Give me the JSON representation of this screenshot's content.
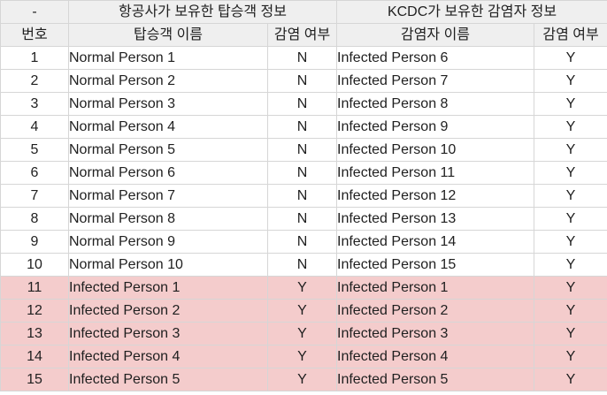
{
  "header": {
    "group_row": {
      "index_placeholder": "-",
      "airline_group": "항공사가 보유한 탑승객 정보",
      "kcdc_group": "KCDC가 보유한 감염자 정보"
    },
    "column_row": {
      "index": "번호",
      "passenger_name": "탑승객 이름",
      "passenger_infected": "감염 여부",
      "infected_name": "감염자 이름",
      "infected_status": "감염 여부"
    }
  },
  "rows": [
    {
      "no": "1",
      "passenger": "Normal Person 1",
      "p_status": "N",
      "infected": "Infected Person 6",
      "i_status": "Y",
      "highlight": false
    },
    {
      "no": "2",
      "passenger": "Normal Person 2",
      "p_status": "N",
      "infected": "Infected Person 7",
      "i_status": "Y",
      "highlight": false
    },
    {
      "no": "3",
      "passenger": "Normal Person 3",
      "p_status": "N",
      "infected": "Infected Person 8",
      "i_status": "Y",
      "highlight": false
    },
    {
      "no": "4",
      "passenger": "Normal Person 4",
      "p_status": "N",
      "infected": "Infected Person 9",
      "i_status": "Y",
      "highlight": false
    },
    {
      "no": "5",
      "passenger": "Normal Person 5",
      "p_status": "N",
      "infected": "Infected Person 10",
      "i_status": "Y",
      "highlight": false
    },
    {
      "no": "6",
      "passenger": "Normal Person 6",
      "p_status": "N",
      "infected": "Infected Person 11",
      "i_status": "Y",
      "highlight": false
    },
    {
      "no": "7",
      "passenger": "Normal Person 7",
      "p_status": "N",
      "infected": "Infected Person 12",
      "i_status": "Y",
      "highlight": false
    },
    {
      "no": "8",
      "passenger": "Normal Person 8",
      "p_status": "N",
      "infected": "Infected Person 13",
      "i_status": "Y",
      "highlight": false
    },
    {
      "no": "9",
      "passenger": "Normal Person 9",
      "p_status": "N",
      "infected": "Infected Person 14",
      "i_status": "Y",
      "highlight": false
    },
    {
      "no": "10",
      "passenger": "Normal Person 10",
      "p_status": "N",
      "infected": "Infected Person 15",
      "i_status": "Y",
      "highlight": false
    },
    {
      "no": "11",
      "passenger": "Infected Person 1",
      "p_status": "Y",
      "infected": "Infected Person 1",
      "i_status": "Y",
      "highlight": true
    },
    {
      "no": "12",
      "passenger": "Infected Person 2",
      "p_status": "Y",
      "infected": "Infected Person 2",
      "i_status": "Y",
      "highlight": true
    },
    {
      "no": "13",
      "passenger": "Infected Person 3",
      "p_status": "Y",
      "infected": "Infected Person 3",
      "i_status": "Y",
      "highlight": true
    },
    {
      "no": "14",
      "passenger": "Infected Person 4",
      "p_status": "Y",
      "infected": "Infected Person 4",
      "i_status": "Y",
      "highlight": true
    },
    {
      "no": "15",
      "passenger": "Infected Person 5",
      "p_status": "Y",
      "infected": "Infected Person 5",
      "i_status": "Y",
      "highlight": true
    }
  ],
  "colors": {
    "header_background": "#efefef",
    "highlight_background": "#f4cccc",
    "grid_line": "#d6d6d6"
  }
}
